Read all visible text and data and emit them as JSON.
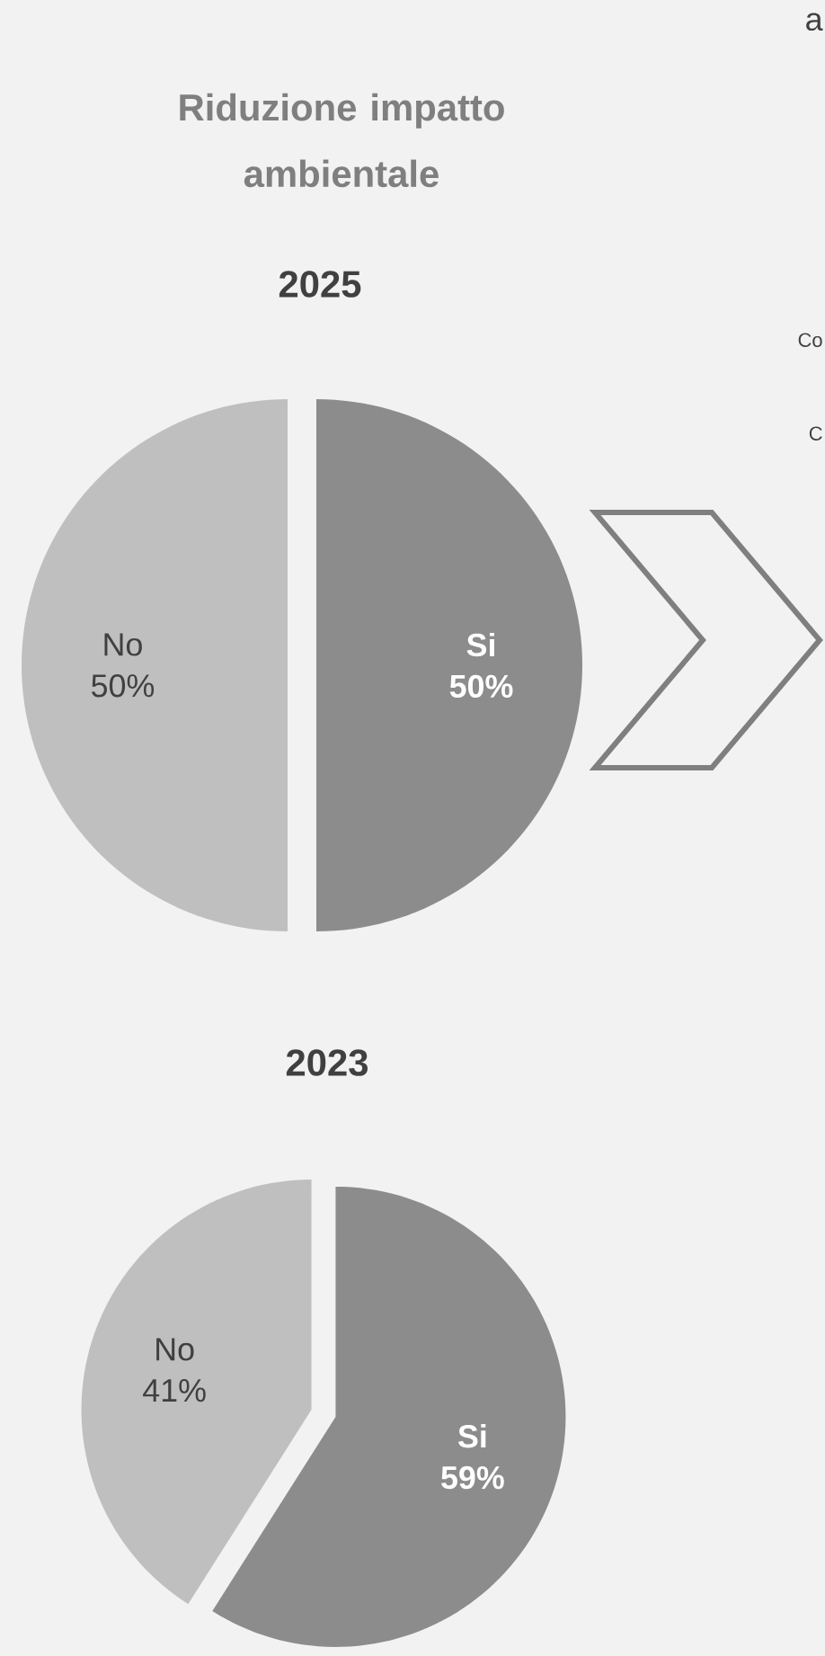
{
  "chart_data": [
    {
      "type": "pie",
      "title": "Riduzione impatto ambientale",
      "subtitle": "2025",
      "categories": [
        "Si",
        "No"
      ],
      "values": [
        50,
        50
      ],
      "colors": [
        "#8c8c8c",
        "#bfbfbf"
      ],
      "value_labels": [
        "50%",
        "50%"
      ],
      "annotations": [
        "a",
        "Co",
        "C"
      ]
    },
    {
      "type": "pie",
      "title": "2023",
      "categories": [
        "Si",
        "No"
      ],
      "values": [
        59,
        41
      ],
      "colors": [
        "#8c8c8c",
        "#bfbfbf"
      ],
      "value_labels": [
        "59%",
        "41%"
      ]
    }
  ]
}
